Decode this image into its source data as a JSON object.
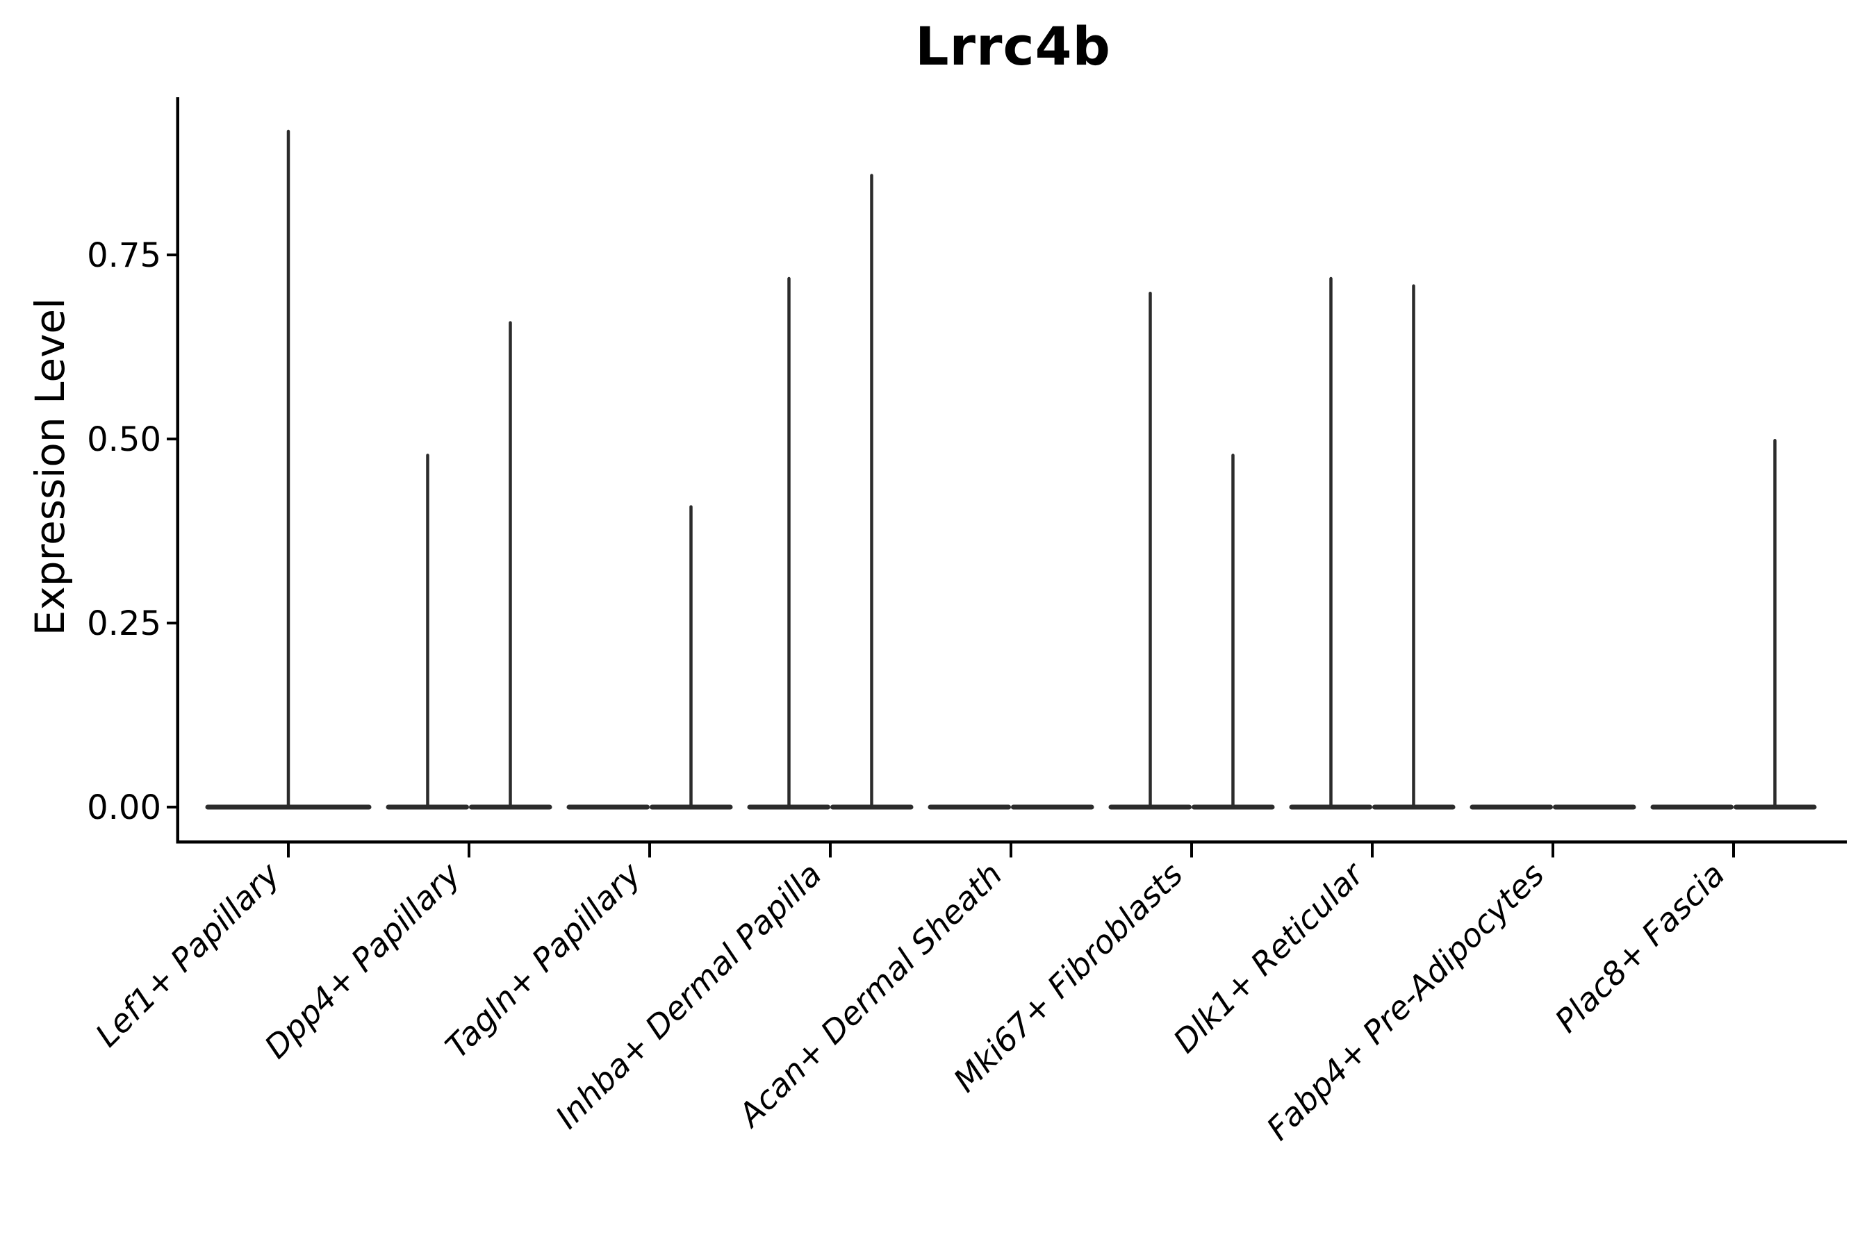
{
  "chart_data": {
    "type": "violin",
    "title": "Lrrc4b",
    "ylabel": "Expression Level",
    "xlabel": "",
    "legend": "none",
    "grid": false,
    "ylim": [
      -0.05,
      0.97
    ],
    "ytick_labels": [
      "0.00",
      "0.25",
      "0.50",
      "0.75"
    ],
    "ytick_values": [
      0,
      0.25,
      0.5,
      0.75
    ],
    "categories": [
      "Lef1+ Papillary",
      "Dpp4+ Papillary",
      "Tagln+ Papillary",
      "Inhba+ Dermal Papilla",
      "Acan+ Dermal Sheath",
      "Mki67+ Fibroblasts",
      "Dlk1+ Reticular",
      "Fabp4+ Pre-Adipocytes",
      "Plac8+ Fascia"
    ],
    "violins": [
      {
        "label": "Lef1+ Papillary",
        "groups": [
          {
            "position": "center",
            "max_expression": 0.92
          }
        ]
      },
      {
        "label": "Dpp4+ Papillary",
        "groups": [
          {
            "position": "left",
            "max_expression": 0.48
          },
          {
            "position": "right",
            "max_expression": 0.66
          }
        ]
      },
      {
        "label": "Tagln+ Papillary",
        "groups": [
          {
            "position": "left",
            "max_expression": 0
          },
          {
            "position": "right",
            "max_expression": 0.41
          }
        ]
      },
      {
        "label": "Inhba+ Dermal Papilla",
        "groups": [
          {
            "position": "left",
            "max_expression": 0.72
          },
          {
            "position": "right",
            "max_expression": 0.86
          }
        ]
      },
      {
        "label": "Acan+ Dermal Sheath",
        "groups": [
          {
            "position": "left",
            "max_expression": 0
          },
          {
            "position": "right",
            "max_expression": 0
          }
        ]
      },
      {
        "label": "Mki67+ Fibroblasts",
        "groups": [
          {
            "position": "left",
            "max_expression": 0.7
          },
          {
            "position": "right",
            "max_expression": 0.48
          }
        ]
      },
      {
        "label": "Dlk1+ Reticular",
        "groups": [
          {
            "position": "left",
            "max_expression": 0.72
          },
          {
            "position": "right",
            "max_expression": 0.71
          }
        ]
      },
      {
        "label": "Fabp4+ Pre-Adipocytes",
        "groups": [
          {
            "position": "left",
            "max_expression": 0
          },
          {
            "position": "right",
            "max_expression": 0
          }
        ]
      },
      {
        "label": "Plac8+ Fascia",
        "groups": [
          {
            "position": "left",
            "max_expression": 0
          },
          {
            "position": "right",
            "max_expression": 0.5
          }
        ]
      }
    ],
    "baseline_value": 0,
    "colors": {
      "violin": "#2b2b2b",
      "axis": "#000000",
      "text": "#000000",
      "background": "#ffffff"
    }
  }
}
